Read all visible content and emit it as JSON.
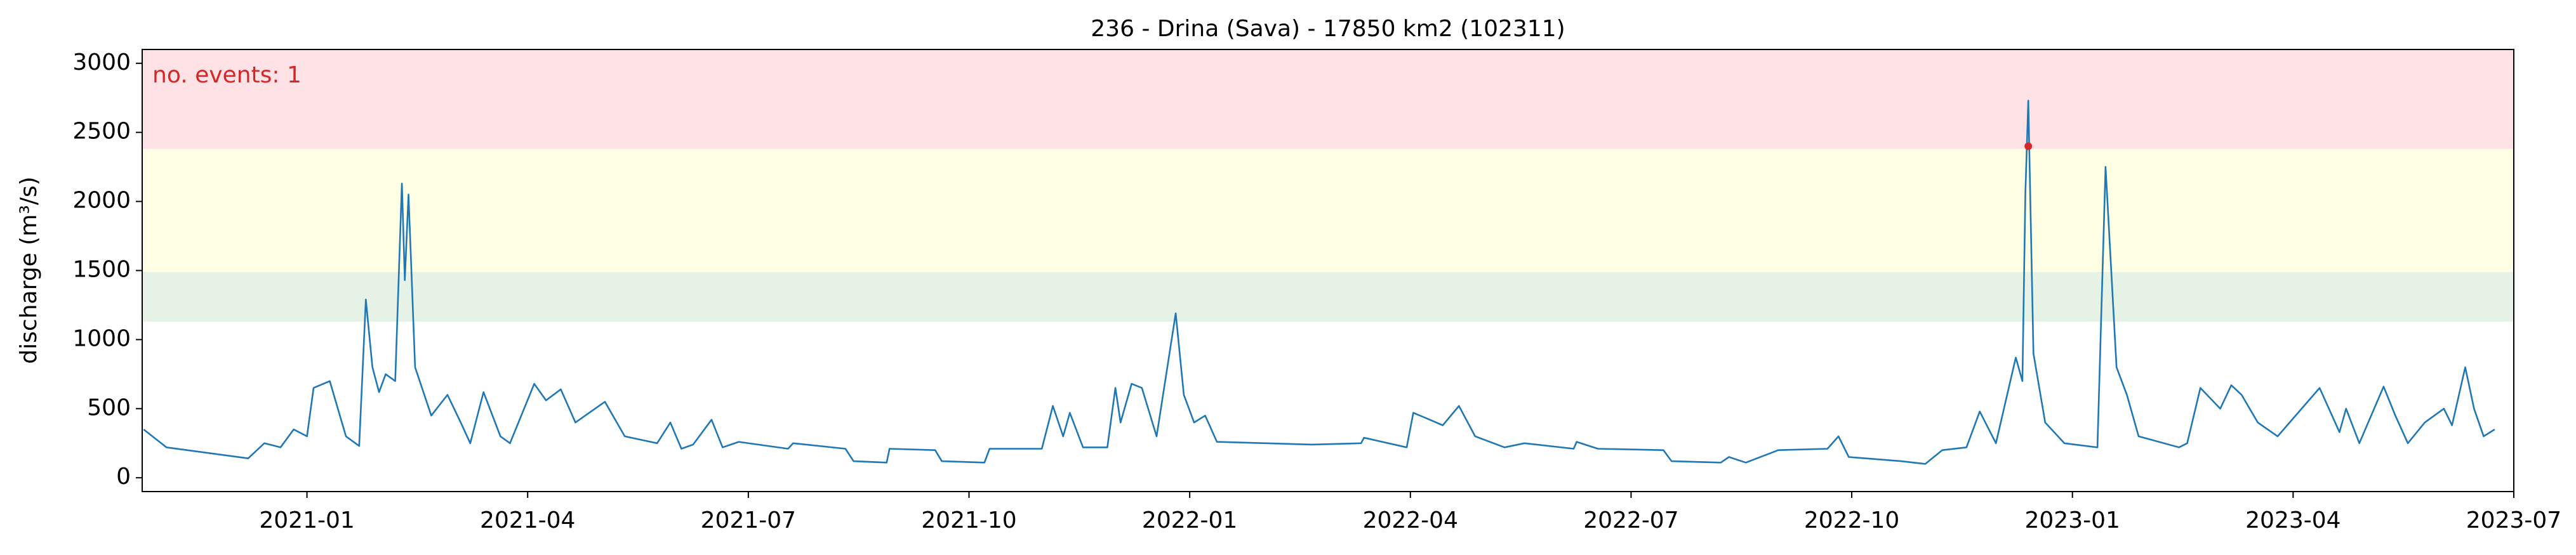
{
  "chart_data": {
    "type": "line",
    "title": "236 - Drina (Sava) - 17850 km2 (102311)",
    "y_label": "discharge (m³/s)",
    "annotation": "no. events: 1",
    "annotation_color": "#d62728",
    "thresholds": [
      1130,
      1490,
      2380
    ],
    "band_colors": [
      "#e5f2e5",
      "#ffffe3",
      "#ffe2e5"
    ],
    "xlim": [
      -2.24,
      30
    ],
    "xticks": [
      {
        "value": 0,
        "label": "2021-01"
      },
      {
        "value": 3,
        "label": "2021-04"
      },
      {
        "value": 6,
        "label": "2021-07"
      },
      {
        "value": 9,
        "label": "2021-10"
      },
      {
        "value": 12,
        "label": "2022-01"
      },
      {
        "value": 15,
        "label": "2022-04"
      },
      {
        "value": 18,
        "label": "2022-07"
      },
      {
        "value": 21,
        "label": "2022-10"
      },
      {
        "value": 24,
        "label": "2023-01"
      },
      {
        "value": 27,
        "label": "2023-04"
      },
      {
        "value": 30,
        "label": "2023-07"
      }
    ],
    "ylim": [
      -100,
      3100
    ],
    "yticks": [
      0,
      500,
      1000,
      1500,
      2000,
      2500,
      3000
    ],
    "series": [
      {
        "color": "#1f77b4",
        "x": [
          -2.22,
          -1.91,
          -0.8,
          -0.58,
          -0.36,
          -0.18,
          0,
          0.09,
          0.31,
          0.53,
          0.71,
          0.8,
          0.89,
          0.98,
          1.07,
          1.2,
          1.29,
          1.33,
          1.38,
          1.47,
          1.69,
          1.91,
          2.09,
          2.22,
          2.4,
          2.63,
          2.76,
          3.09,
          3.25,
          3.45,
          3.65,
          4.05,
          4.32,
          4.76,
          4.94,
          5.09,
          5.25,
          5.5,
          5.65,
          5.87,
          6.54,
          6.61,
          7.32,
          7.43,
          7.88,
          7.92,
          8.54,
          8.63,
          9.21,
          9.28,
          9.99,
          10.14,
          10.28,
          10.37,
          10.55,
          10.88,
          10.99,
          11.06,
          11.21,
          11.35,
          11.55,
          11.81,
          11.92,
          12.06,
          12.21,
          12.37,
          13.66,
          14.33,
          14.37,
          14.95,
          15.04,
          15.22,
          15.44,
          15.66,
          15.88,
          16.28,
          16.55,
          17.22,
          17.26,
          17.55,
          18.44,
          18.55,
          19.22,
          19.33,
          19.56,
          20,
          20.67,
          20.82,
          20.96,
          21.67,
          22,
          22.23,
          22.56,
          22.74,
          22.96,
          23.23,
          23.32,
          23.36,
          23.4,
          23.47,
          23.63,
          23.89,
          24.34,
          24.45,
          24.6,
          24.74,
          24.9,
          25.45,
          25.56,
          25.74,
          26.01,
          26.16,
          26.3,
          26.52,
          26.79,
          27.36,
          27.63,
          27.72,
          27.9,
          28.23,
          28.39,
          28.56,
          28.79,
          29.05,
          29.16,
          29.34,
          29.46,
          29.59,
          29.74
        ],
        "values": [
          350,
          220,
          140,
          250,
          220,
          350,
          300,
          650,
          700,
          300,
          230,
          1290,
          800,
          620,
          750,
          700,
          2130,
          1430,
          2050,
          800,
          450,
          600,
          400,
          250,
          620,
          300,
          250,
          680,
          560,
          640,
          400,
          550,
          300,
          250,
          400,
          210,
          240,
          420,
          220,
          260,
          210,
          250,
          210,
          120,
          110,
          210,
          200,
          120,
          110,
          210,
          210,
          520,
          300,
          470,
          220,
          220,
          650,
          400,
          680,
          650,
          300,
          1190,
          600,
          400,
          450,
          260,
          240,
          250,
          290,
          220,
          470,
          430,
          380,
          520,
          300,
          220,
          250,
          210,
          260,
          210,
          200,
          120,
          110,
          150,
          110,
          200,
          210,
          300,
          150,
          120,
          100,
          200,
          220,
          480,
          250,
          870,
          700,
          2060,
          2730,
          900,
          400,
          250,
          220,
          2250,
          800,
          600,
          300,
          220,
          250,
          650,
          500,
          670,
          600,
          400,
          300,
          650,
          330,
          500,
          250,
          660,
          450,
          250,
          400,
          500,
          380,
          800,
          500,
          300,
          350
        ]
      }
    ],
    "events": {
      "x": [
        23.4
      ],
      "values": [
        2400
      ],
      "color": "#d62728"
    }
  }
}
